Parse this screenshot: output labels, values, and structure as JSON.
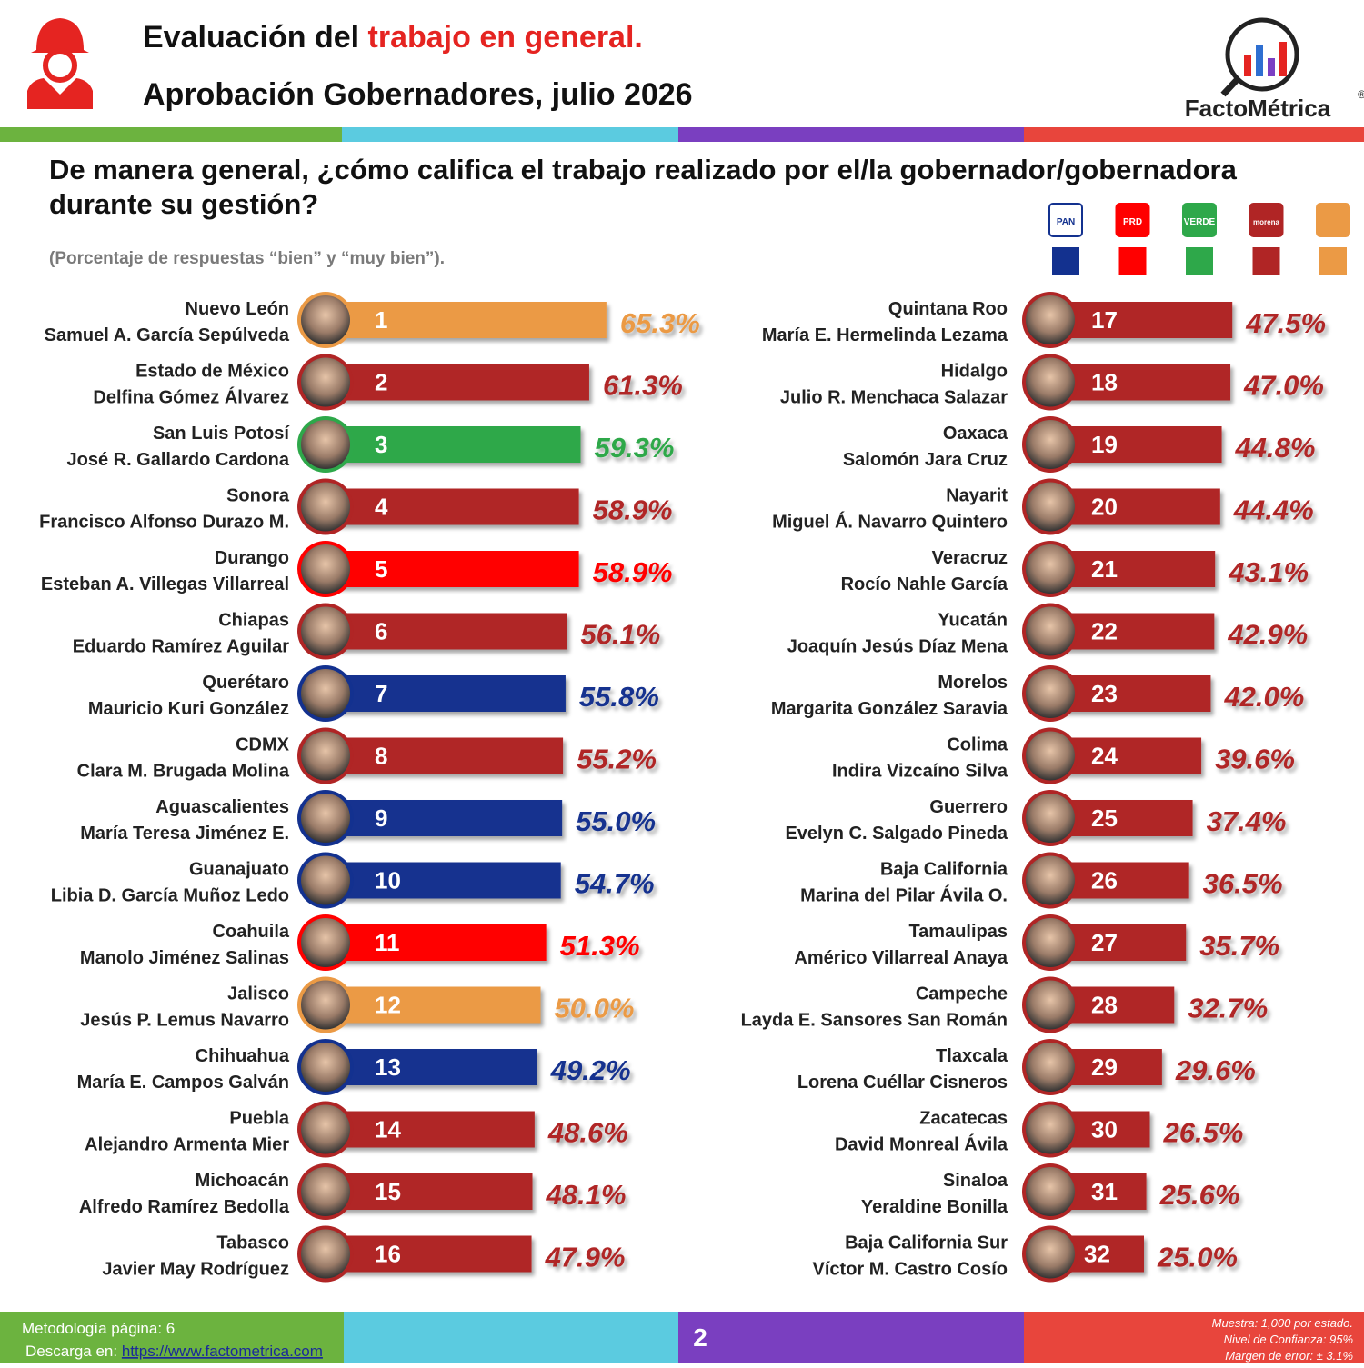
{
  "header": {
    "title_start": "Evaluación del ",
    "title_highlight": "trabajo en general.",
    "subtitle": "Aprobación Gobernadores, julio 2026",
    "brand": "FactoMétrica",
    "brand_mark": "®"
  },
  "question": "De manera general, ¿cómo califica el trabajo realizado por el/la gobernador/gobernadora durante su gestión?",
  "note": "(Porcentaje de respuestas “bien” y “muy bien”).",
  "parties": [
    {
      "logo": "PAN",
      "color": "#13318f"
    },
    {
      "logo": "PRD",
      "color": "#ff0000"
    },
    {
      "logo": "VERDE",
      "color": "#2ea84a"
    },
    {
      "logo": "morena",
      "color": "#b02525"
    },
    {
      "color": "#eb9a45"
    }
  ],
  "chart_data": {
    "type": "bar",
    "categories": [
      "Nuevo León",
      "Estado de México",
      "San Luis Potosí",
      "Sonora",
      "Durango",
      "Chiapas",
      "Querétaro",
      "CDMX",
      "Aguascalientes",
      "Guanajuato",
      "Coahuila",
      "Jalisco",
      "Chihuahua",
      "Puebla",
      "Michoacán",
      "Tabasco",
      "Quintana Roo",
      "Hidalgo",
      "Oaxaca",
      "Nayarit",
      "Veracruz",
      "Yucatán",
      "Morelos",
      "Colima",
      "Guerrero",
      "Baja California",
      "Tamaulipas",
      "Campeche",
      "Tlaxcala",
      "Zacatecas",
      "Sinaloa",
      "Baja California Sur"
    ],
    "governors": [
      "Samuel A. García Sepúlveda",
      "Delfina Gómez Álvarez",
      "José R. Gallardo Cardona",
      "Francisco Alfonso Durazo M.",
      "Esteban A. Villegas Villarreal",
      "Eduardo Ramírez Aguilar",
      "Mauricio Kuri González",
      "Clara M. Brugada Molina",
      "María Teresa Jiménez E.",
      "Libia D. García Muñoz Ledo",
      "Manolo Jiménez Salinas",
      "Jesús P. Lemus Navarro",
      "María E. Campos Galván",
      "Alejandro Armenta Mier",
      "Alfredo Ramírez Bedolla",
      "Javier May Rodríguez",
      "María E. Hermelinda Lezama",
      "Julio R. Menchaca Salazar",
      "Salomón Jara Cruz",
      "Miguel Á. Navarro Quintero",
      "Rocío Nahle García",
      "Joaquín Jesús Díaz Mena",
      "Margarita González Saravia",
      "Indira Vizcaíno Silva",
      "Evelyn C. Salgado Pineda",
      "Marina del Pilar Ávila O.",
      "Américo Villarreal Anaya",
      "Layda E. Sansores San Román",
      "Lorena Cuéllar Cisneros",
      "David Monreal Ávila",
      "Yeraldine Bonilla",
      "Víctor M. Castro Cosío"
    ],
    "ranks": [
      1,
      2,
      3,
      4,
      5,
      6,
      7,
      8,
      9,
      10,
      11,
      12,
      13,
      14,
      15,
      16,
      17,
      18,
      19,
      20,
      21,
      22,
      23,
      24,
      25,
      26,
      27,
      28,
      29,
      30,
      31,
      32
    ],
    "values": [
      65.3,
      61.3,
      59.3,
      58.9,
      58.9,
      56.1,
      55.8,
      55.2,
      55.0,
      54.7,
      51.3,
      50.0,
      49.2,
      48.6,
      48.1,
      47.9,
      47.5,
      47.0,
      44.8,
      44.4,
      43.1,
      42.9,
      42.0,
      39.6,
      37.4,
      36.5,
      35.7,
      32.7,
      29.6,
      26.5,
      25.6,
      25.0
    ],
    "value_labels": [
      "65.3%",
      "61.3%",
      "59.3%",
      "58.9%",
      "58.9%",
      "56.1%",
      "55.8%",
      "55.2%",
      "55.0%",
      "54.7%",
      "51.3%",
      "50.0%",
      "49.2%",
      "48.6%",
      "48.1%",
      "47.9%",
      "47.5%",
      "47.0%",
      "44.8%",
      "44.4%",
      "43.1%",
      "42.9%",
      "42.0%",
      "39.6%",
      "37.4%",
      "36.5%",
      "35.7%",
      "32.7%",
      "29.6%",
      "26.5%",
      "25.6%",
      "25.0%"
    ],
    "colors": [
      "#eb9a45",
      "#b02525",
      "#2ea84a",
      "#b02525",
      "#ff0000",
      "#b02525",
      "#13318f",
      "#b02525",
      "#13318f",
      "#13318f",
      "#ff0000",
      "#eb9a45",
      "#13318f",
      "#b02525",
      "#b02525",
      "#b02525",
      "#b02525",
      "#b02525",
      "#b02525",
      "#b02525",
      "#b02525",
      "#b02525",
      "#b02525",
      "#b02525",
      "#b02525",
      "#b02525",
      "#b02525",
      "#b02525",
      "#b02525",
      "#b02525",
      "#b02525",
      "#b02525"
    ]
  },
  "footer": {
    "methodology": "Metodología página: 6",
    "download": "Descarga en: ",
    "link": "https://www.factometrica.com",
    "page": "2",
    "sample": "Muestra:  1,000 por estado.",
    "confidence": "Nivel de Confianza: 95%",
    "error": "Margen de error: ± 3.1%"
  }
}
